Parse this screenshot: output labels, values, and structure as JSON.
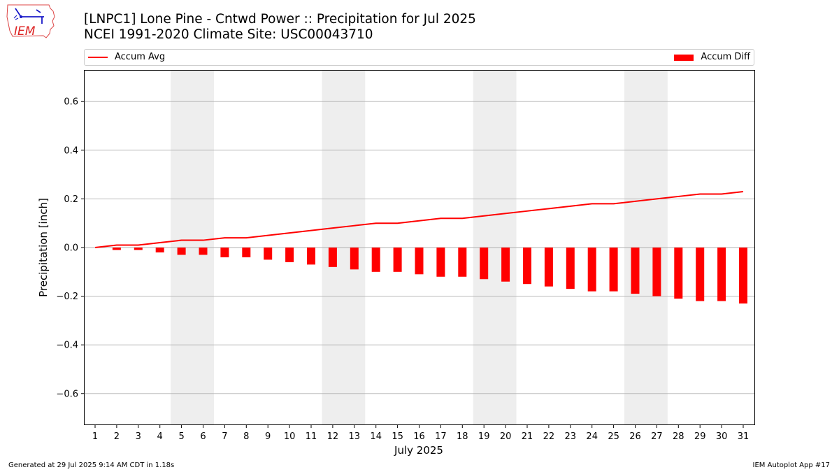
{
  "header": {
    "title_line1": "[LNPC1] Lone Pine - Cntwd Power :: Precipitation for Jul 2025",
    "title_line2": "NCEI 1991-2020 Climate Site: USC00043710"
  },
  "logo": {
    "text": "IEM",
    "icon": "iem-logo-iowa-map"
  },
  "footer": {
    "generated": "Generated at 29 Jul 2025 9:14 AM CDT in 1.18s",
    "app": "IEM Autoplot App #17"
  },
  "colors": {
    "series": "#ff0000",
    "weekend_band": "#eeeeee",
    "grid": "#b0b0b0"
  },
  "chart_data": {
    "type": "bar",
    "title": "[LNPC1] Lone Pine - Cntwd Power :: Precipitation for Jul 2025",
    "subtitle": "NCEI 1991-2020 Climate Site: USC00043710",
    "xlabel": "July 2025",
    "ylabel": "Precipitation [inch]",
    "ylim": [
      -0.73,
      0.73
    ],
    "yticks": [
      -0.6,
      -0.4,
      -0.2,
      0.0,
      0.2,
      0.4,
      0.6
    ],
    "ytick_labels": [
      "−0.6",
      "−0.4",
      "−0.2",
      "0.0",
      "0.2",
      "0.4",
      "0.6"
    ],
    "grid": "horizontal",
    "legend_placement": "top",
    "x": [
      1,
      2,
      3,
      4,
      5,
      6,
      7,
      8,
      9,
      10,
      11,
      12,
      13,
      14,
      15,
      16,
      17,
      18,
      19,
      20,
      21,
      22,
      23,
      24,
      25,
      26,
      27,
      28,
      29,
      30,
      31
    ],
    "shaded_days": [
      5,
      6,
      12,
      13,
      19,
      20,
      26,
      27
    ],
    "series": [
      {
        "name": "Accum Avg",
        "kind": "line",
        "values": [
          0.0,
          0.01,
          0.01,
          0.02,
          0.03,
          0.03,
          0.04,
          0.04,
          0.05,
          0.06,
          0.07,
          0.08,
          0.09,
          0.1,
          0.1,
          0.11,
          0.12,
          0.12,
          0.13,
          0.14,
          0.15,
          0.16,
          0.17,
          0.18,
          0.18,
          0.19,
          0.2,
          0.21,
          0.22,
          0.22,
          0.23
        ]
      },
      {
        "name": "Accum Diff",
        "kind": "bar",
        "values": [
          0.0,
          -0.01,
          -0.01,
          -0.02,
          -0.03,
          -0.03,
          -0.04,
          -0.04,
          -0.05,
          -0.06,
          -0.07,
          -0.08,
          -0.09,
          -0.1,
          -0.1,
          -0.11,
          -0.12,
          -0.12,
          -0.13,
          -0.14,
          -0.15,
          -0.16,
          -0.17,
          -0.18,
          -0.18,
          -0.19,
          -0.2,
          -0.21,
          -0.22,
          -0.22,
          -0.23
        ]
      }
    ]
  }
}
